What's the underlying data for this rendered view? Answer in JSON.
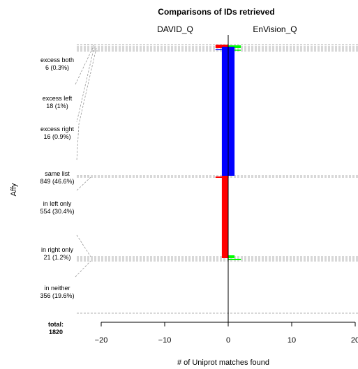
{
  "chart_data": {
    "type": "bar",
    "title": "Comparisons of IDs retrieved",
    "xlabel": "# of Uniprot matches found",
    "ylabel": "Affy",
    "left_heading": "DAVID_Q",
    "right_heading": "EnVision_Q",
    "xlim": [
      -20,
      20
    ],
    "xticks": [
      -20,
      -10,
      0,
      10,
      20
    ],
    "grid": false,
    "total_label": "total:",
    "total_value": "1820",
    "categories": [
      {
        "name": "excess both",
        "count": "6 (0.3%)"
      },
      {
        "name": "excess left",
        "count": "18 (1%)"
      },
      {
        "name": "excess right",
        "count": "16 (0.9%)"
      },
      {
        "name": "same list",
        "count": "849 (46.6%)"
      },
      {
        "name": "in left only",
        "count": "554 (30.4%)"
      },
      {
        "name": "in right only",
        "count": "21 (1.2%)"
      },
      {
        "name": "in neither",
        "count": "356 (19.6%)"
      }
    ],
    "bars": [
      {
        "color": "#ff0000",
        "x0": -2,
        "x1": 0
      },
      {
        "color": "#00ff00",
        "x0": 0,
        "x1": 2
      },
      {
        "color": "#0000ff",
        "x0": -1,
        "x1": 1
      },
      {
        "color": "#ff0000",
        "x0": -1,
        "x1": 0
      },
      {
        "color": "#00ff00",
        "x0": 0,
        "x1": 1
      }
    ],
    "colors": {
      "left": "#ff0000",
      "right": "#00ff00",
      "both": "#0000ff",
      "guide": "#999999"
    }
  }
}
